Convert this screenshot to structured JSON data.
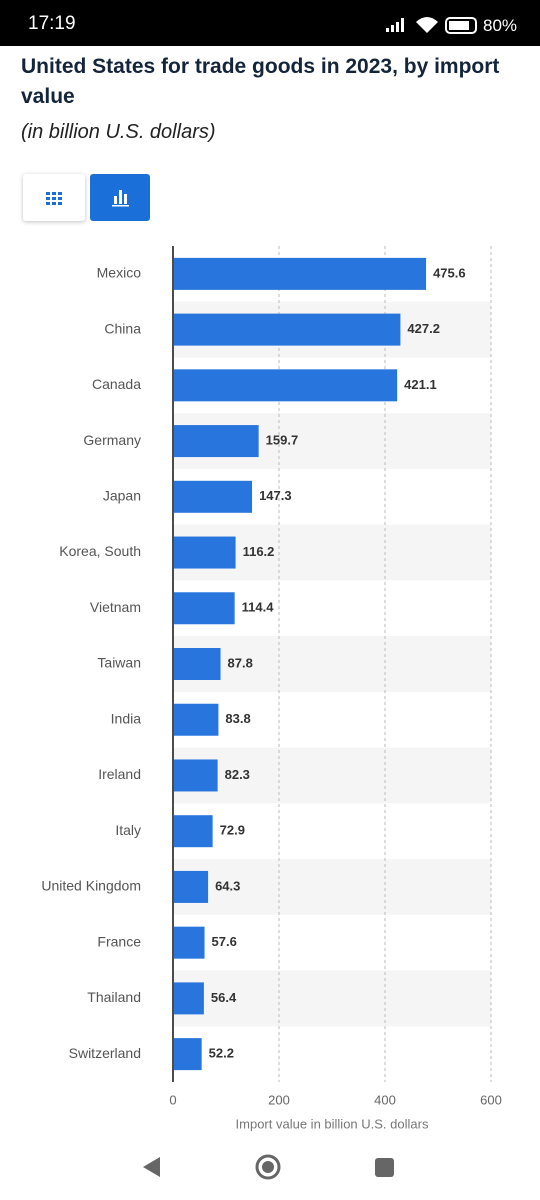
{
  "status_bar": {
    "time": "17:19",
    "battery": "80%"
  },
  "chart_data": {
    "type": "bar",
    "orientation": "horizontal",
    "title": "United States for trade goods in 2023, by import value",
    "subtitle": "(in billion U.S. dollars)",
    "x_label": "Import value in billion U.S. dollars",
    "categories": [
      "Mexico",
      "China",
      "Canada",
      "Germany",
      "Japan",
      "Korea, South",
      "Vietnam",
      "Taiwan",
      "India",
      "Ireland",
      "Italy",
      "United Kingdom",
      "France",
      "Thailand",
      "Switzerland"
    ],
    "values": [
      475.6,
      427.2,
      421.1,
      159.7,
      147.3,
      116.2,
      114.4,
      87.8,
      83.8,
      82.3,
      72.9,
      64.3,
      57.6,
      56.4,
      52.2
    ],
    "color": "#2876dd",
    "xlim": [
      0,
      600
    ],
    "xticks": [
      0,
      200,
      400,
      600
    ],
    "grid": true
  }
}
